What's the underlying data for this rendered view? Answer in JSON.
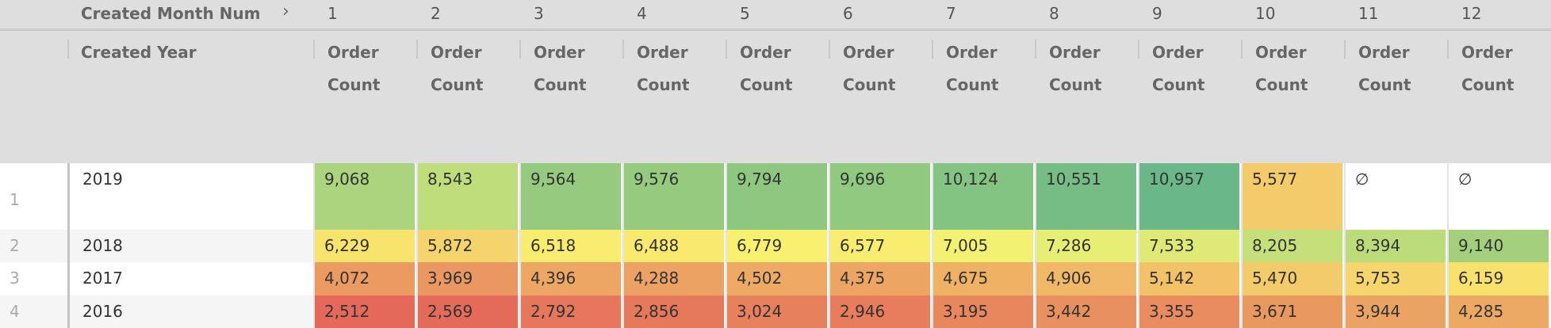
{
  "pivot_header": {
    "label": "Created Month Num",
    "chevron_icon": "chevron-right-icon",
    "months": [
      "1",
      "2",
      "3",
      "4",
      "5",
      "6",
      "7",
      "8",
      "9",
      "10",
      "11",
      "12"
    ]
  },
  "column_header": {
    "dimension": "Created Year",
    "measure": "Order Count"
  },
  "rows": [
    {
      "index": "1",
      "year": "2019",
      "values": [
        "9,068",
        "8,543",
        "9,564",
        "9,576",
        "9,794",
        "9,696",
        "10,124",
        "10,551",
        "10,957",
        "5,577",
        "∅",
        "∅"
      ],
      "colors": [
        "#acd37e",
        "#bfdd7a",
        "#95ca7f",
        "#95ca7f",
        "#8ec880",
        "#90c980",
        "#84c482",
        "#76bd85",
        "#6ab88a",
        "#f4cb6a",
        "#ffffff",
        "#ffffff"
      ]
    },
    {
      "index": "2",
      "year": "2018",
      "values": [
        "6,229",
        "5,872",
        "6,518",
        "6,488",
        "6,779",
        "6,577",
        "7,005",
        "7,286",
        "7,533",
        "8,205",
        "8,394",
        "9,140"
      ],
      "colors": [
        "#f8e36d",
        "#f5d46b",
        "#f9ec6f",
        "#f9ea6f",
        "#f9f070",
        "#f9ed6f",
        "#f3f172",
        "#e7ee74",
        "#dfea76",
        "#c5df7a",
        "#bcdb7b",
        "#a4d07e"
      ]
    },
    {
      "index": "3",
      "year": "2017",
      "values": [
        "4,072",
        "3,969",
        "4,396",
        "4,288",
        "4,502",
        "4,375",
        "4,675",
        "4,906",
        "5,142",
        "5,470",
        "5,753",
        "6,159"
      ],
      "colors": [
        "#eb9b62",
        "#ea9762",
        "#eda663",
        "#eca263",
        "#eeaa64",
        "#eda564",
        "#efb265",
        "#f1b967",
        "#f2c168",
        "#f3cb6a",
        "#f5d56c",
        "#f8e16d"
      ]
    },
    {
      "index": "4",
      "year": "2016",
      "values": [
        "2,512",
        "2,569",
        "2,792",
        "2,856",
        "3,024",
        "2,946",
        "3,195",
        "3,442",
        "3,355",
        "3,671",
        "3,944",
        "4,285"
      ],
      "colors": [
        "#e4695a",
        "#e46b5a",
        "#e6765c",
        "#e6795c",
        "#e7805d",
        "#e77d5d",
        "#e8865e",
        "#e8905f",
        "#e98c5f",
        "#e99960",
        "#eaa362",
        "#eca963"
      ]
    }
  ]
}
